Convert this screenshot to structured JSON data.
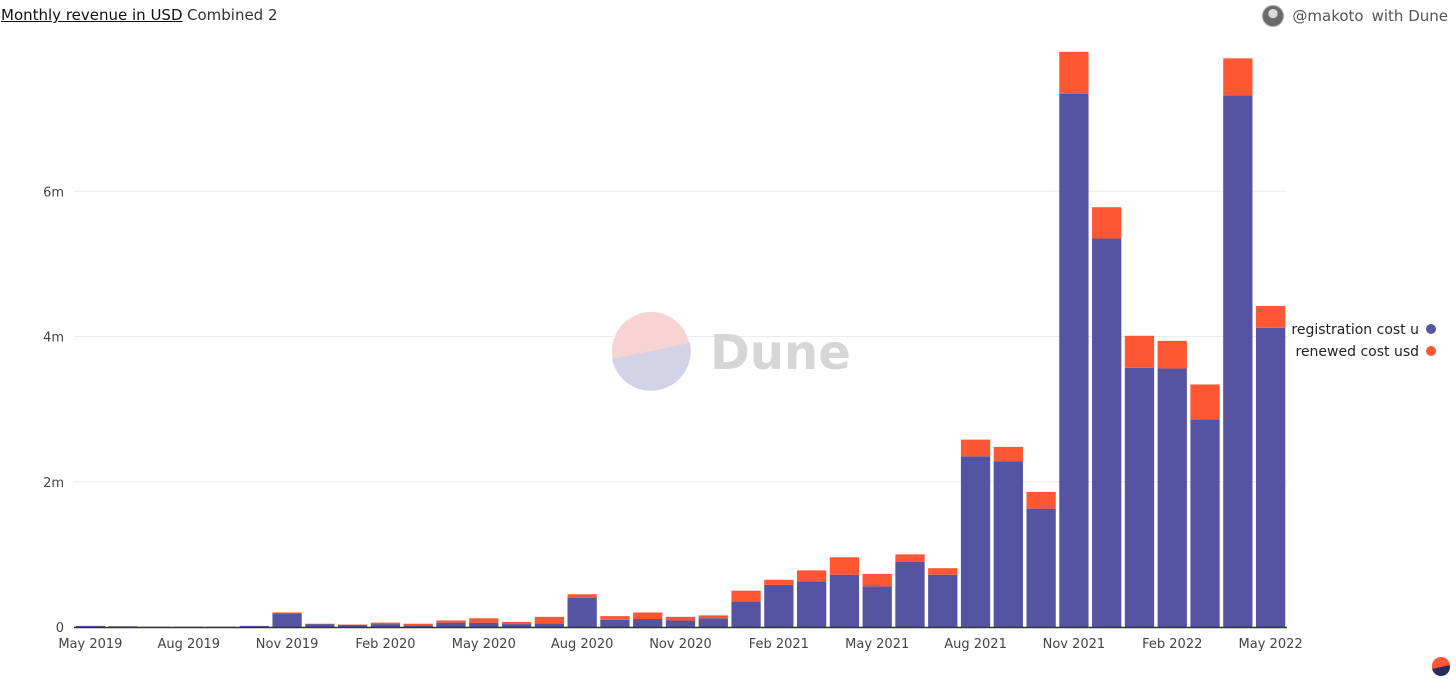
{
  "header": {
    "title": "Monthly revenue in USD",
    "subtitle": "Combined 2",
    "author_handle": "@makoto",
    "author_suffix": "with Dune"
  },
  "watermark": {
    "text": "Dune"
  },
  "colors": {
    "registration": "#5654a2",
    "renewed": "#ff5733",
    "grid": "#ececec",
    "axis": "#333333"
  },
  "chart_data": {
    "type": "bar",
    "stacked": true,
    "title": "Monthly revenue in USD",
    "xlabel": "",
    "ylabel": "",
    "ylim": [
      0,
      8000000
    ],
    "y_ticks": [
      0,
      2000000,
      4000000,
      6000000
    ],
    "y_tick_labels": [
      "0",
      "2m",
      "4m",
      "6m"
    ],
    "grid": true,
    "legend_position": "right",
    "x_tick_labels": [
      "May 2019",
      "Aug 2019",
      "Nov 2019",
      "Feb 2020",
      "May 2020",
      "Aug 2020",
      "Nov 2020",
      "Feb 2021",
      "May 2021",
      "Aug 2021",
      "Nov 2021",
      "Feb 2022",
      "May 2022"
    ],
    "categories": [
      "2019-05",
      "2019-06",
      "2019-07",
      "2019-08",
      "2019-09",
      "2019-10",
      "2019-11",
      "2019-12",
      "2020-01",
      "2020-02",
      "2020-03",
      "2020-04",
      "2020-05",
      "2020-06",
      "2020-07",
      "2020-08",
      "2020-09",
      "2020-10",
      "2020-11",
      "2020-12",
      "2021-01",
      "2021-02",
      "2021-03",
      "2021-04",
      "2021-05",
      "2021-06",
      "2021-07",
      "2021-08",
      "2021-09",
      "2021-10",
      "2021-11",
      "2021-12",
      "2022-01",
      "2022-02",
      "2022-03",
      "2022-04",
      "2022-05"
    ],
    "series": [
      {
        "name": "registration cost u",
        "color": "#5654a2",
        "values": [
          15000,
          10000,
          5000,
          5000,
          5000,
          15000,
          190000,
          40000,
          30000,
          40000,
          25000,
          60000,
          60000,
          40000,
          50000,
          400000,
          100000,
          110000,
          90000,
          120000,
          350000,
          580000,
          630000,
          720000,
          560000,
          900000,
          720000,
          2350000,
          2280000,
          1630000,
          7340000,
          5350000,
          3570000,
          3560000,
          2860000,
          7320000,
          4120000
        ]
      },
      {
        "name": "renewed cost usd",
        "color": "#ff5733",
        "values": [
          0,
          0,
          0,
          0,
          0,
          0,
          10000,
          5000,
          5000,
          20000,
          20000,
          30000,
          60000,
          30000,
          90000,
          50000,
          50000,
          90000,
          50000,
          40000,
          150000,
          70000,
          150000,
          240000,
          170000,
          100000,
          90000,
          230000,
          200000,
          230000,
          580000,
          430000,
          440000,
          380000,
          480000,
          510000,
          300000
        ]
      }
    ]
  }
}
